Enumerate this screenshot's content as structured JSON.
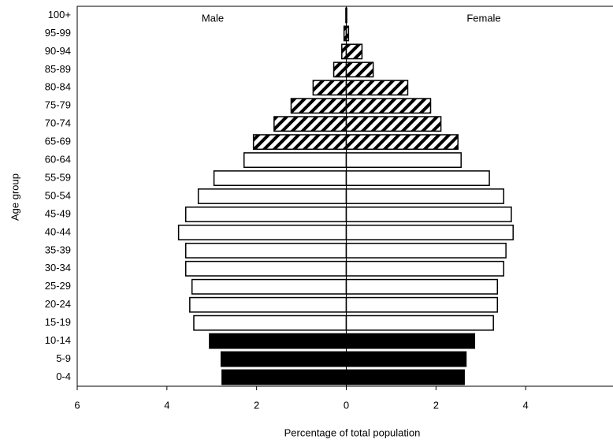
{
  "chart_data": {
    "type": "pyramid",
    "xlabel": "Percentage of total population",
    "ylabel": "Age group",
    "annotations": [
      "Male",
      "Female"
    ],
    "categories": [
      "0-4",
      "5-9",
      "10-14",
      "15-19",
      "20-24",
      "25-29",
      "30-34",
      "35-39",
      "40-44",
      "45-49",
      "50-54",
      "55-59",
      "60-64",
      "65-69",
      "70-74",
      "75-79",
      "80-84",
      "85-89",
      "90-94",
      "95-99",
      "100+"
    ],
    "fills": [
      "#000000",
      "#000000",
      "#000000",
      "#ffffff",
      "#ffffff",
      "#ffffff",
      "#ffffff",
      "#ffffff",
      "#ffffff",
      "#ffffff",
      "#ffffff",
      "#ffffff",
      "#ffffff",
      "hatch",
      "hatch",
      "hatch",
      "hatch",
      "hatch",
      "hatch",
      "hatch",
      "hatch"
    ],
    "series": [
      {
        "name": "Male",
        "values": [
          -2.77,
          -2.79,
          -3.05,
          -3.4,
          -3.49,
          -3.44,
          -3.58,
          -3.58,
          -3.74,
          -3.58,
          -3.3,
          -2.95,
          -2.28,
          -2.07,
          -1.61,
          -1.23,
          -0.74,
          -0.28,
          -0.1,
          -0.05,
          -0.01
        ]
      },
      {
        "name": "Female",
        "values": [
          2.63,
          2.67,
          2.86,
          3.28,
          3.37,
          3.37,
          3.51,
          3.56,
          3.72,
          3.68,
          3.51,
          3.19,
          2.56,
          2.49,
          2.11,
          1.88,
          1.37,
          0.6,
          0.35,
          0.05,
          0.01
        ]
      }
    ],
    "xlim": [
      -6,
      6
    ],
    "xticks": [
      {
        "value": -6,
        "label": "6"
      },
      {
        "value": -4,
        "label": "4"
      },
      {
        "value": -2,
        "label": "2"
      },
      0,
      2,
      4,
      6
    ]
  }
}
